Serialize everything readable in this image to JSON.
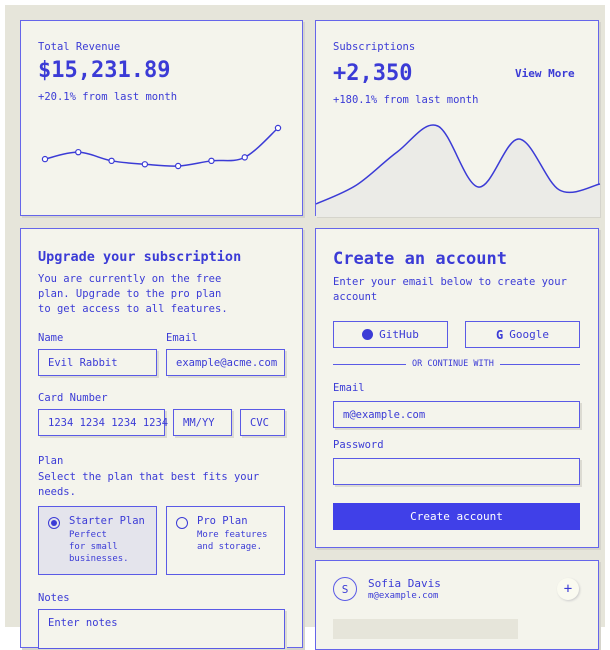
{
  "revenue": {
    "title": "Total Revenue",
    "value": "$15,231.89",
    "change": "+20.1% from last month"
  },
  "subscriptions": {
    "title": "Subscriptions",
    "value": "+2,350",
    "change": "+180.1% from last month",
    "view_more": "View More"
  },
  "chart_data": [
    {
      "type": "line",
      "values": [
        10,
        12,
        9.5,
        8.5,
        8,
        9.5,
        10.5,
        19
      ],
      "markers": true,
      "color": "#3b3bd6"
    },
    {
      "type": "area",
      "values": [
        13,
        32,
        65,
        91,
        30,
        78,
        27,
        33
      ],
      "color": "#3b3bd6",
      "fill": "#ebebe7"
    }
  ],
  "upgrade": {
    "title": "Upgrade your subscription",
    "desc": [
      "You are currently on the free",
      "plan. Upgrade to the pro plan",
      "to get access to all features."
    ],
    "name_label": "Name",
    "name_value": "Evil Rabbit",
    "email_label": "Email",
    "email_placeholder": "example@acme.com",
    "card_label": "Card Number",
    "card_value": "1234 1234 1234 1234",
    "mmyy": "MM/YY",
    "cvc": "CVC",
    "plan_label": "Plan",
    "plan_desc": [
      "Select the plan that best fits your",
      "needs."
    ],
    "plans": [
      {
        "name": "Starter Plan",
        "desc": [
          "Perfect",
          "for small",
          "businesses."
        ],
        "selected": true
      },
      {
        "name": "Pro Plan",
        "desc": [
          "More features",
          "and storage."
        ],
        "selected": false
      }
    ],
    "notes_label": "Notes",
    "notes_placeholder": "Enter notes"
  },
  "account": {
    "title": "Create an account",
    "desc": [
      "Enter your email below to create your",
      "account"
    ],
    "github": "GitHub",
    "google": "Google",
    "divider": "OR CONTINUE WITH",
    "email_label": "Email",
    "email_value": "m@example.com",
    "password_label": "Password",
    "submit": "Create account"
  },
  "user": {
    "initial": "S",
    "name": "Sofia Davis",
    "email": "m@example.com",
    "add": "+"
  }
}
